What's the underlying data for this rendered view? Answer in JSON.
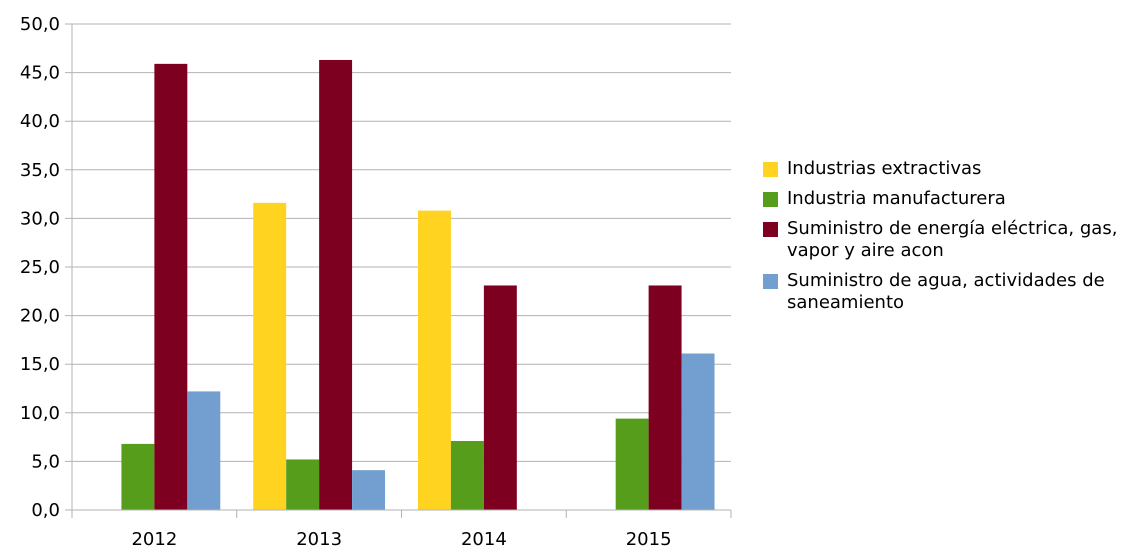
{
  "chart_data": {
    "type": "bar",
    "categories": [
      "2012",
      "2013",
      "2014",
      "2015"
    ],
    "series": [
      {
        "name": "Industrias extractivas",
        "color": "#FFD320",
        "values": [
          0,
          31.6,
          30.8,
          0
        ]
      },
      {
        "name": "Industria manufacturera",
        "color": "#579D1C",
        "values": [
          6.8,
          5.2,
          7.1,
          9.4
        ]
      },
      {
        "name": "Suministro de energía eléctrica, gas, vapor y aire acon",
        "color": "#7E0021",
        "values": [
          45.9,
          46.3,
          23.1,
          23.1
        ]
      },
      {
        "name": "Suministro de agua, actividades de saneamiento",
        "color": "#729FCF",
        "values": [
          12.2,
          4.1,
          0,
          16.1
        ]
      }
    ],
    "title": "",
    "xlabel": "",
    "ylabel": "",
    "ylim": [
      0,
      50
    ],
    "yticks": [
      "0,0",
      "5,0",
      "10,0",
      "15,0",
      "20,0",
      "25,0",
      "30,0",
      "35,0",
      "40,0",
      "45,0",
      "50,0"
    ],
    "grid": true,
    "legend": "right"
  }
}
